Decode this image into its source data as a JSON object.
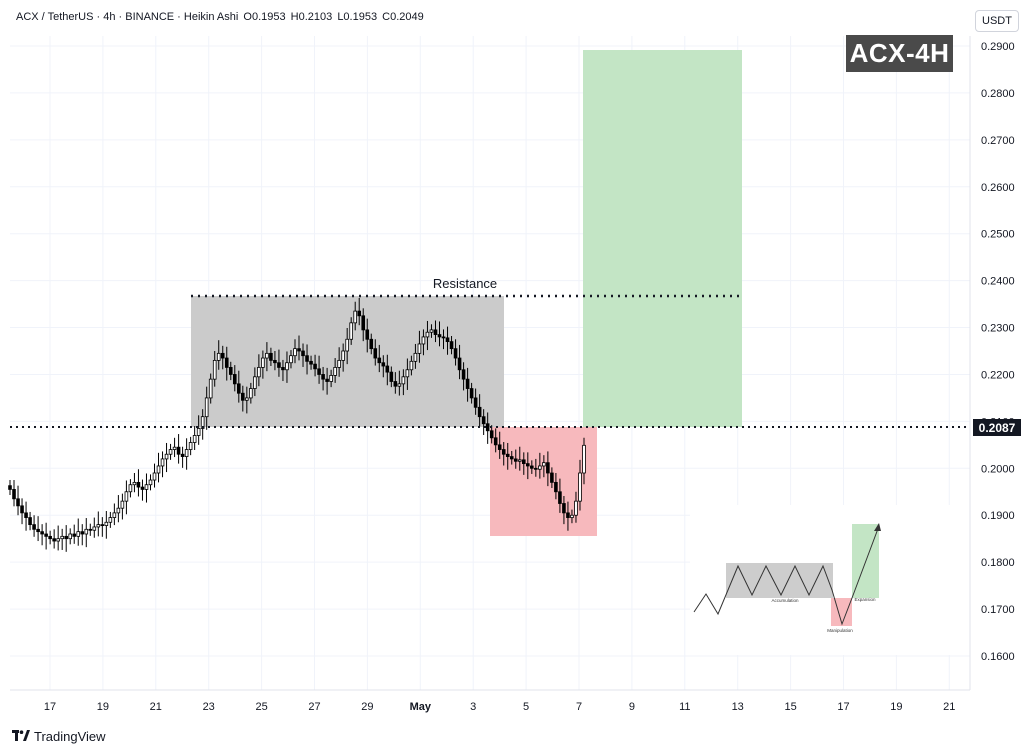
{
  "header": {
    "symbol": "ACX / TetherUS · 4h · BINANCE · Heikin Ashi",
    "open": "O0.1953",
    "high": "H0.2103",
    "low": "L0.1953",
    "close": "C0.2049"
  },
  "price_unit": "USDT",
  "badge": "ACX-4H",
  "footer": {
    "brand": "TradingView",
    "logo": "tradingview-logo-icon"
  },
  "colors": {
    "up": "#000000",
    "down": "#000000",
    "range_box": "#c8c8c8",
    "stop_box": "#f7b9bd",
    "target_box": "#c3e5c5"
  },
  "chart_data": {
    "type": "candlestick",
    "x_ticks": [
      "17",
      "19",
      "21",
      "23",
      "25",
      "27",
      "29",
      "May",
      "3",
      "5",
      "7",
      "9",
      "11",
      "13",
      "15",
      "17",
      "19",
      "21"
    ],
    "y_ticks": [
      "0.2900",
      "0.2800",
      "0.2700",
      "0.2600",
      "0.2500",
      "0.2400",
      "0.2300",
      "0.2200",
      "0.2100",
      "0.2000",
      "0.1900",
      "0.1800",
      "0.1700",
      "0.1600"
    ],
    "ylim": [
      0.1535,
      0.2925
    ],
    "current_price": "0.2087",
    "annotations": [
      {
        "type": "text",
        "text": "Resistance"
      },
      {
        "type": "hline",
        "style": "dotted",
        "value": 0.2368,
        "from": "22.5",
        "to": "13"
      },
      {
        "type": "hline",
        "style": "dotted",
        "value": 0.2087,
        "from": "17-",
        "to": "end"
      },
      {
        "type": "box",
        "name": "range",
        "y": [
          0.2087,
          0.2368
        ],
        "x": [
          "22.5",
          "May 4"
        ]
      },
      {
        "type": "box",
        "name": "stop",
        "y": [
          0.1853,
          0.2087
        ],
        "x": [
          "May 3.6",
          "May 7.7"
        ]
      },
      {
        "type": "box",
        "name": "target",
        "y": [
          0.2087,
          0.289
        ],
        "x": [
          "May 7.2",
          "May 13.2"
        ]
      }
    ],
    "inset": {
      "labels": [
        "Accumulation",
        "Manipulation",
        "Expansion"
      ]
    },
    "price_path": [
      0.1955,
      0.1935,
      0.192,
      0.1905,
      0.1895,
      0.188,
      0.187,
      0.1865,
      0.186,
      0.1855,
      0.185,
      0.1845,
      0.185,
      0.1855,
      0.185,
      0.186,
      0.1855,
      0.1865,
      0.186,
      0.187,
      0.1868,
      0.1875,
      0.188,
      0.1878,
      0.1885,
      0.1895,
      0.1905,
      0.1915,
      0.193,
      0.195,
      0.1965,
      0.197,
      0.196,
      0.1955,
      0.1965,
      0.1975,
      0.199,
      0.2005,
      0.202,
      0.203,
      0.204,
      0.2045,
      0.203,
      0.2025,
      0.204,
      0.2055,
      0.207,
      0.2085,
      0.211,
      0.215,
      0.219,
      0.223,
      0.2245,
      0.2235,
      0.2215,
      0.22,
      0.218,
      0.216,
      0.2145,
      0.215,
      0.217,
      0.2195,
      0.2215,
      0.2235,
      0.2245,
      0.223,
      0.2225,
      0.2215,
      0.221,
      0.2225,
      0.224,
      0.2255,
      0.225,
      0.224,
      0.2228,
      0.2222,
      0.2212,
      0.22,
      0.219,
      0.2185,
      0.2198,
      0.2215,
      0.223,
      0.225,
      0.2275,
      0.231,
      0.2335,
      0.2325,
      0.2295,
      0.2275,
      0.2255,
      0.2235,
      0.2225,
      0.2218,
      0.2205,
      0.2185,
      0.2175,
      0.218,
      0.2195,
      0.221,
      0.2228,
      0.2245,
      0.2265,
      0.228,
      0.229,
      0.2295,
      0.2285,
      0.228,
      0.2278,
      0.227,
      0.2255,
      0.2235,
      0.221,
      0.219,
      0.217,
      0.215,
      0.213,
      0.211,
      0.2095,
      0.208,
      0.2065,
      0.205,
      0.204,
      0.203,
      0.2025,
      0.202,
      0.2015,
      0.2018,
      0.201,
      0.2005,
      0.2,
      0.1998,
      0.2005,
      0.2012,
      0.199,
      0.197,
      0.195,
      0.1925,
      0.1905,
      0.1895,
      0.19,
      0.193,
      0.199,
      0.2049
    ]
  }
}
